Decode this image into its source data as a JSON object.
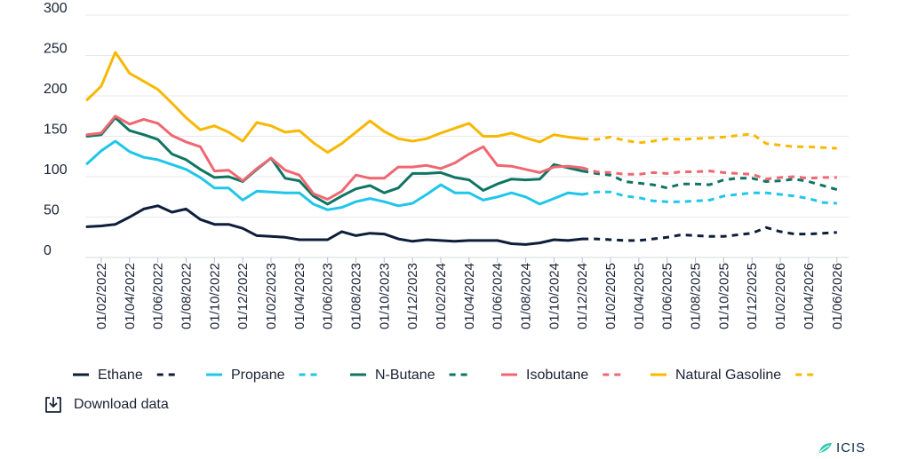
{
  "chart_data": {
    "type": "line",
    "title": "",
    "xlabel": "",
    "ylabel": "",
    "ylim": [
      0,
      300
    ],
    "yticks": [
      0,
      50,
      100,
      150,
      200,
      250,
      300
    ],
    "ytick_labels": [
      "0",
      "50",
      "100",
      "150",
      "200",
      "250",
      "300"
    ],
    "grid": true,
    "legend_position": "bottom",
    "x_start": "2022-01",
    "forecast_start_index": 35,
    "xtick_labels": [
      "01/02/2022",
      "01/04/2022",
      "01/06/2022",
      "01/08/2022",
      "01/10/2022",
      "01/12/2022",
      "01/02/2023",
      "01/04/2023",
      "01/06/2023",
      "01/08/2023",
      "01/10/2023",
      "01/12/2023",
      "01/02/2024",
      "01/04/2024",
      "01/06/2024",
      "01/08/2024",
      "01/10/2024",
      "01/12/2024",
      "01/02/2025",
      "01/04/2025",
      "01/06/2025",
      "01/08/2025",
      "01/10/2025",
      "01/12/2025",
      "01/02/2026",
      "01/04/2026",
      "01/06/2026"
    ],
    "xtick_indices": [
      1,
      3,
      5,
      7,
      9,
      11,
      13,
      15,
      17,
      19,
      21,
      23,
      25,
      27,
      29,
      31,
      33,
      35,
      37,
      39,
      41,
      43,
      45,
      47,
      49,
      51,
      53
    ],
    "series": [
      {
        "name": "Ethane",
        "color": "#0d1e3a",
        "values": [
          38,
          39,
          41,
          50,
          60,
          64,
          56,
          60,
          47,
          41,
          41,
          36,
          27,
          26,
          25,
          22,
          22,
          22,
          32,
          27,
          30,
          29,
          23,
          20,
          22,
          21,
          20,
          21,
          21,
          21,
          17,
          16,
          18,
          22,
          21,
          23,
          23,
          22,
          21,
          21,
          23,
          25,
          28,
          27,
          26,
          26,
          28,
          30,
          37,
          32,
          29,
          29,
          30,
          31
        ]
      },
      {
        "name": "Propane",
        "color": "#1fc6ea",
        "values": [
          116,
          132,
          144,
          131,
          124,
          121,
          115,
          109,
          99,
          86,
          86,
          71,
          82,
          81,
          80,
          80,
          66,
          59,
          62,
          69,
          73,
          69,
          64,
          67,
          78,
          90,
          80,
          80,
          71,
          75,
          80,
          75,
          66,
          73,
          80,
          78,
          81,
          81,
          76,
          74,
          70,
          69,
          69,
          70,
          71,
          76,
          78,
          80,
          80,
          78,
          76,
          73,
          68,
          67
        ]
      },
      {
        "name": "N-Butane",
        "color": "#0f7562",
        "values": [
          150,
          152,
          173,
          157,
          152,
          146,
          128,
          121,
          109,
          99,
          100,
          94,
          109,
          123,
          98,
          95,
          76,
          66,
          76,
          85,
          89,
          80,
          86,
          104,
          104,
          105,
          99,
          96,
          83,
          91,
          97,
          96,
          97,
          115,
          111,
          107,
          104,
          102,
          94,
          92,
          90,
          86,
          91,
          91,
          90,
          96,
          98,
          98,
          94,
          95,
          97,
          94,
          89,
          84
        ]
      },
      {
        "name": "Isobutane",
        "color": "#ef6771",
        "values": [
          152,
          154,
          175,
          165,
          171,
          166,
          151,
          143,
          137,
          107,
          108,
          95,
          110,
          123,
          108,
          102,
          79,
          72,
          82,
          102,
          98,
          98,
          112,
          112,
          114,
          110,
          117,
          128,
          137,
          114,
          113,
          109,
          105,
          112,
          113,
          111,
          106,
          105,
          103,
          103,
          105,
          104,
          106,
          106,
          107,
          105,
          104,
          103,
          97,
          99,
          100,
          98,
          99,
          99
        ]
      },
      {
        "name": "Natural Gasoline",
        "color": "#f8b800",
        "values": [
          195,
          212,
          254,
          228,
          218,
          208,
          191,
          173,
          158,
          163,
          155,
          144,
          167,
          163,
          155,
          157,
          142,
          130,
          141,
          155,
          169,
          156,
          147,
          144,
          147,
          154,
          160,
          166,
          150,
          150,
          154,
          148,
          143,
          152,
          149,
          147,
          146,
          149,
          145,
          142,
          144,
          147,
          146,
          147,
          148,
          149,
          151,
          153,
          141,
          139,
          137,
          137,
          136,
          135
        ]
      }
    ]
  },
  "download": {
    "label": "Download data",
    "icon": "download-icon"
  },
  "logo": {
    "text": "ICIS"
  }
}
